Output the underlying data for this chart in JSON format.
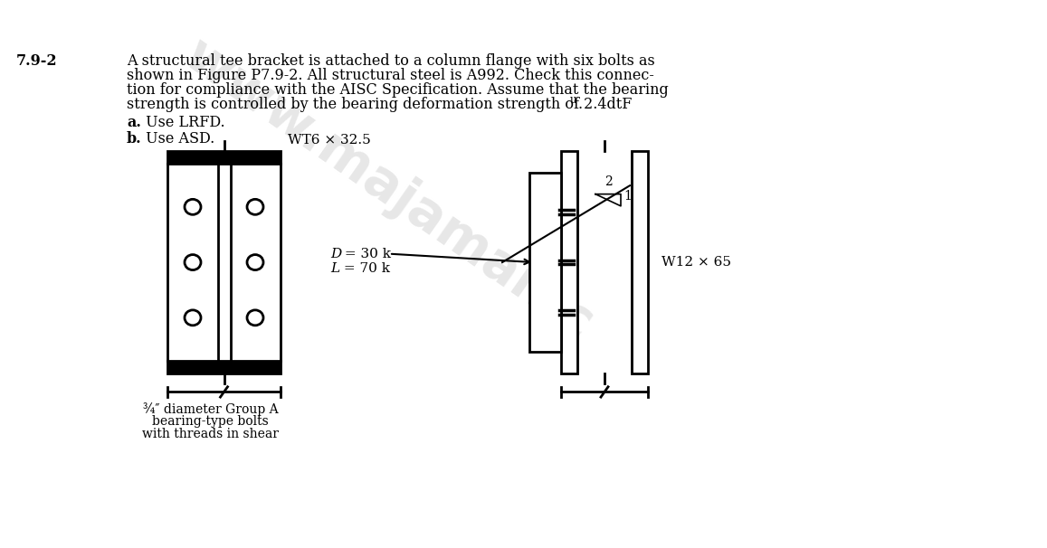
{
  "bg_color": "#ffffff",
  "problem_number": "7.9-2",
  "problem_text_lines": [
    "A structural tee bracket is attached to a column flange with six bolts as",
    "shown in Figure P7.9-2. All structural steel is A992. Check this connec-",
    "tion for compliance with the AISC Specification. Assume that the bearing",
    "strength is controlled by the bearing deformation strength of 2.4dtF"
  ],
  "subscript_u": "u",
  "part_a_bold": "a.",
  "part_a_text": " Use LRFD.",
  "part_b_bold": "b.",
  "part_b_text": " Use ASD.",
  "wt_label": "WT6 × 32.5",
  "w12_label": "W12 × 65",
  "D_label": "D",
  "D_val": " = 30 k",
  "L_label": "L",
  "L_val": " = 70 k",
  "bolt_line1": "¾″ diameter Group A",
  "bolt_line2": "bearing-type bolts",
  "bolt_line3": "with threads in shear",
  "label_1": "1",
  "label_2": "2",
  "text_color": "#000000",
  "line_color": "#000000",
  "wm_color": "#bbbbbb"
}
